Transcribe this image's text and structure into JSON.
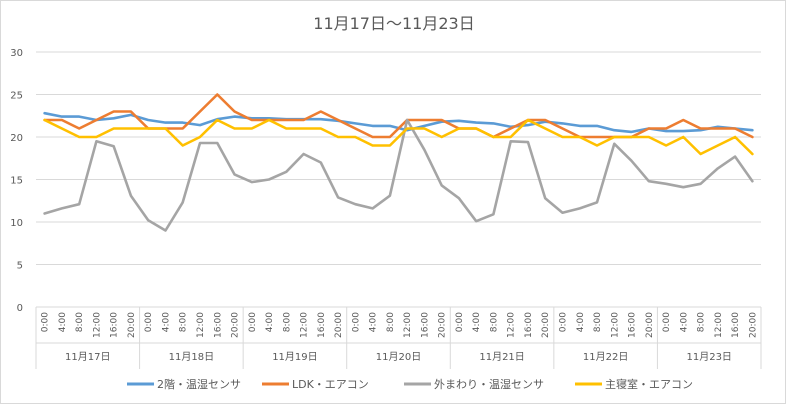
{
  "chart_data": {
    "type": "line",
    "title": "11月17日〜11月23日",
    "ylim": [
      0,
      30
    ],
    "yticks": [
      "0",
      "5",
      "10",
      "15",
      "20",
      "25",
      "30"
    ],
    "grid": true,
    "legend_position": "bottom",
    "x_labels": [
      "0:00",
      "4:00",
      "8:00",
      "12:00",
      "16:00",
      "20:00",
      "0:00",
      "4:00",
      "8:00",
      "12:00",
      "16:00",
      "20:00",
      "0:00",
      "4:00",
      "8:00",
      "12:00",
      "16:00",
      "20:00",
      "0:00",
      "4:00",
      "8:00",
      "12:00",
      "16:00",
      "20:00",
      "0:00",
      "4:00",
      "8:00",
      "12:00",
      "16:00",
      "20:00",
      "0:00",
      "4:00",
      "8:00",
      "12:00",
      "16:00",
      "20:00",
      "0:00",
      "4:00",
      "8:00",
      "12:00",
      "16:00",
      "20:00"
    ],
    "days": [
      "11月17日",
      "11月18日",
      "11月19日",
      "11月20日",
      "11月21日",
      "11月22日",
      "11月23日"
    ],
    "series": [
      {
        "name": "2階・温湿センサ",
        "color": "#5b9bd5",
        "values": [
          22.8,
          22.4,
          22.4,
          22.0,
          22.2,
          22.6,
          22.0,
          21.7,
          21.7,
          21.4,
          22.1,
          22.4,
          22.2,
          22.2,
          22.1,
          22.1,
          22.1,
          21.9,
          21.6,
          21.3,
          21.3,
          20.8,
          21.3,
          21.8,
          21.9,
          21.7,
          21.6,
          21.2,
          21.4,
          21.8,
          21.6,
          21.3,
          21.3,
          20.8,
          20.6,
          21.0,
          20.7,
          20.7,
          20.8,
          21.2,
          21.0,
          20.8
        ]
      },
      {
        "name": "LDK・エアコン",
        "color": "#ed7d31",
        "values": [
          22,
          22,
          21,
          22,
          23,
          23,
          21,
          21,
          21,
          23,
          25,
          23,
          22,
          22,
          22,
          22,
          23,
          22,
          21,
          20,
          20,
          22,
          22,
          22,
          21,
          21,
          20,
          21,
          22,
          22,
          21,
          20,
          20,
          20,
          20,
          21,
          21,
          22,
          21,
          21,
          21,
          20
        ]
      },
      {
        "name": "外まわり・温湿センサ",
        "color": "#a5a5a5",
        "values": [
          11.0,
          11.6,
          12.1,
          19.5,
          18.9,
          13.1,
          10.2,
          9.0,
          12.3,
          19.3,
          19.3,
          15.6,
          14.7,
          15.0,
          15.9,
          18.0,
          17.0,
          12.9,
          12.1,
          11.6,
          13.1,
          22.0,
          18.5,
          14.3,
          12.8,
          10.1,
          10.9,
          19.5,
          19.4,
          12.8,
          11.1,
          11.6,
          12.3,
          19.2,
          17.2,
          14.8,
          14.5,
          14.1,
          14.5,
          16.3,
          17.7,
          14.8
        ]
      },
      {
        "name": "主寝室・エアコン",
        "color": "#ffc000",
        "values": [
          22,
          21,
          20,
          20,
          21,
          21,
          21,
          21,
          19,
          20,
          22,
          21,
          21,
          22,
          21,
          21,
          21,
          20,
          20,
          19,
          19,
          21,
          21,
          20,
          21,
          21,
          20,
          20,
          22,
          21,
          20,
          20,
          19,
          20,
          20,
          20,
          19,
          20,
          18,
          19,
          20,
          18
        ]
      }
    ]
  }
}
